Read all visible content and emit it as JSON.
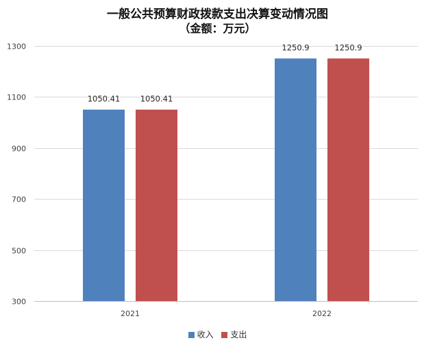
{
  "chart_data": {
    "type": "bar",
    "title": "一般公共预算财政拨款支出决算变动情况图",
    "subtitle": "（金额：万元）",
    "categories": [
      "2021",
      "2022"
    ],
    "series": [
      {
        "name": "收入",
        "color": "#4F81BD",
        "values": [
          1050.41,
          1250.9
        ],
        "labels": [
          "1050.41",
          "1250.9"
        ]
      },
      {
        "name": "支出",
        "color": "#C0504D",
        "values": [
          1050.41,
          1250.9
        ],
        "labels": [
          "1050.41",
          "1250.9"
        ]
      }
    ],
    "ylim": [
      300,
      1300
    ],
    "yticks": [
      300,
      500,
      700,
      900,
      1100,
      1300
    ],
    "grid": true,
    "legend_position": "bottom"
  }
}
